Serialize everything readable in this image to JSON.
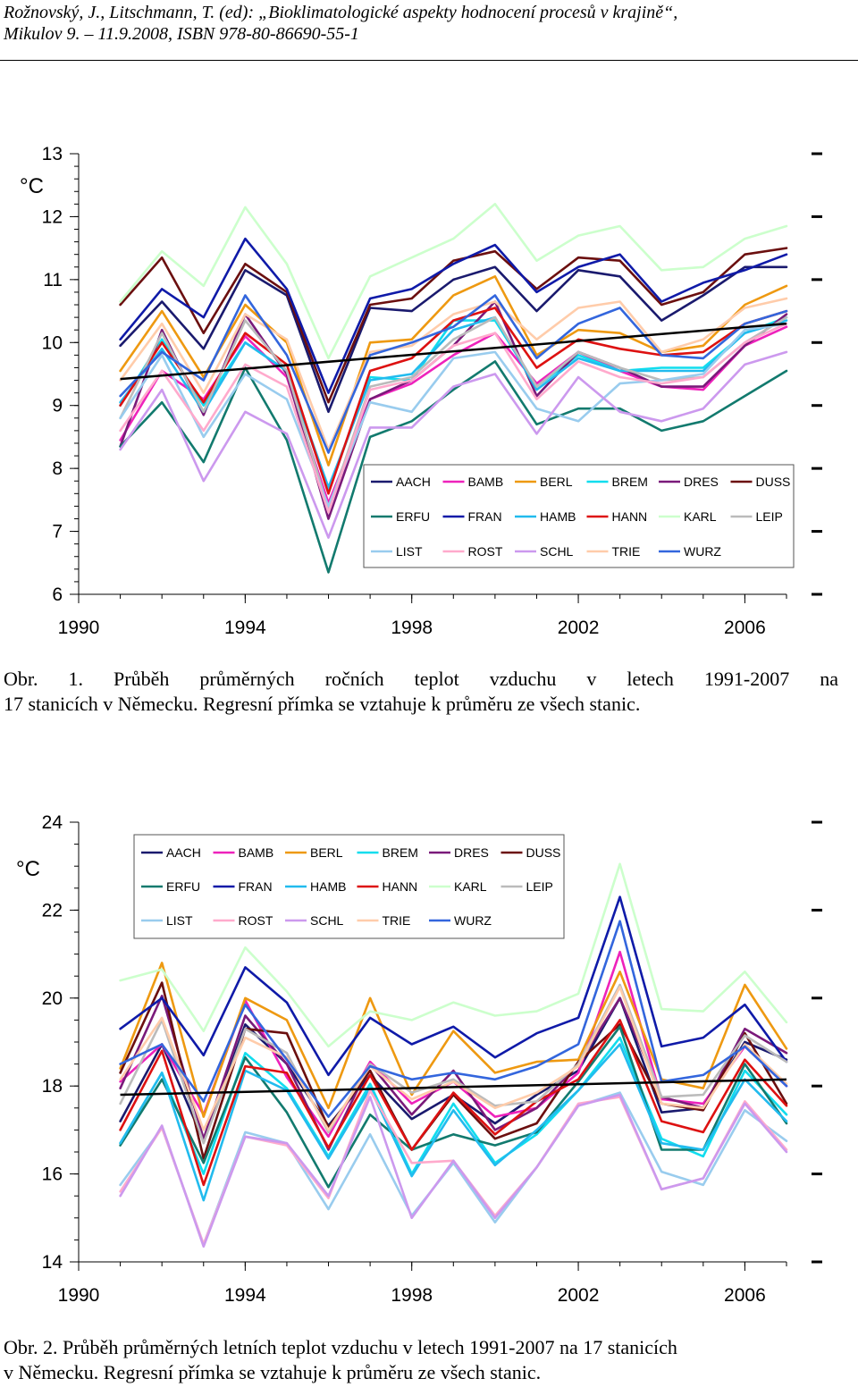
{
  "header": {
    "line1": "Rožnovský, J., Litschmann, T. (ed): „Bioklimatologické aspekty hodnocení procesů v krajině“,",
    "line2": "Mikulov 9. – 11.9.2008, ISBN 978-80-86690-55-1"
  },
  "figure1": {
    "caption_line1": "Obr. 1. Průběh průměrných ročních teplot vzduchu v letech 1991-2007 na",
    "caption_line2": "17 stanicích v Německu. Regresní přímka se vztahuje k průměru ze všech stanic."
  },
  "figure2": {
    "caption_line1": "Obr. 2. Průběh průměrných letních teplot vzduchu v letech 1991-2007 na 17 stanicích",
    "caption_line2": "v Německu. Regresní přímka se vztahuje k průměru ze všech stanic."
  },
  "chart_data": [
    {
      "type": "line",
      "unit_label": "°C",
      "x": [
        1991,
        1992,
        1993,
        1994,
        1995,
        1996,
        1997,
        1998,
        1999,
        2000,
        2001,
        2002,
        2003,
        2004,
        2005,
        2006,
        2007
      ],
      "x_ticks": [
        1990,
        1994,
        1998,
        2002,
        2006
      ],
      "xlim": [
        1990,
        2007
      ],
      "y_ticks": [
        6,
        7,
        8,
        9,
        10,
        11,
        12,
        13
      ],
      "ylim": [
        6,
        13
      ],
      "legend_position": "inside-bottom-right",
      "regression": {
        "color": "#000000",
        "values": [
          9.42,
          10.3
        ]
      },
      "series": [
        {
          "name": "AACH",
          "color": "#1a1a6e",
          "values": [
            9.95,
            10.65,
            9.9,
            11.15,
            10.75,
            8.9,
            10.55,
            10.5,
            11.0,
            11.2,
            10.5,
            11.15,
            11.05,
            10.35,
            10.75,
            11.2,
            11.2
          ]
        },
        {
          "name": "BAMB",
          "color": "#ee22bb",
          "values": [
            8.45,
            9.55,
            9.1,
            10.1,
            9.45,
            7.45,
            9.1,
            9.35,
            9.8,
            10.15,
            9.35,
            9.85,
            9.55,
            9.3,
            9.25,
            9.95,
            10.25
          ]
        },
        {
          "name": "BERL",
          "color": "#ee9911",
          "values": [
            9.55,
            10.5,
            9.45,
            10.6,
            10.0,
            8.05,
            10.0,
            10.05,
            10.75,
            11.05,
            9.8,
            10.2,
            10.15,
            9.85,
            9.95,
            10.6,
            10.9
          ]
        },
        {
          "name": "BREM",
          "color": "#11ddee",
          "values": [
            9.0,
            10.05,
            9.0,
            10.0,
            9.55,
            7.65,
            9.45,
            9.4,
            10.35,
            10.35,
            9.3,
            9.8,
            9.55,
            9.6,
            9.6,
            10.15,
            10.4
          ]
        },
        {
          "name": "DRES",
          "color": "#7a1a7a",
          "values": [
            8.35,
            10.2,
            8.85,
            10.45,
            9.5,
            7.2,
            9.1,
            9.4,
            9.95,
            10.65,
            9.15,
            9.85,
            9.6,
            9.3,
            9.3,
            9.95,
            10.45
          ]
        },
        {
          "name": "DUSS",
          "color": "#6b0f0f",
          "values": [
            10.6,
            11.35,
            10.15,
            11.25,
            10.8,
            9.05,
            10.6,
            10.7,
            11.3,
            11.45,
            10.85,
            11.35,
            11.3,
            10.6,
            10.8,
            11.4,
            11.5
          ]
        },
        {
          "name": "ERFU",
          "color": "#127a6e",
          "values": [
            8.35,
            9.05,
            8.1,
            9.6,
            8.45,
            6.35,
            8.5,
            8.75,
            9.25,
            9.7,
            8.7,
            8.95,
            8.95,
            8.6,
            8.75,
            9.15,
            9.55
          ]
        },
        {
          "name": "FRAN",
          "color": "#0f1aa8",
          "values": [
            10.05,
            10.85,
            10.4,
            11.65,
            10.85,
            9.2,
            10.7,
            10.85,
            11.25,
            11.55,
            10.8,
            11.2,
            11.4,
            10.65,
            10.95,
            11.15,
            11.4
          ]
        },
        {
          "name": "HAMB",
          "color": "#22bbee",
          "values": [
            9.05,
            9.9,
            8.9,
            10.0,
            9.55,
            7.7,
            9.4,
            9.5,
            10.2,
            10.4,
            9.25,
            9.75,
            9.55,
            9.55,
            9.55,
            10.15,
            10.35
          ]
        },
        {
          "name": "HANN",
          "color": "#dd1111",
          "values": [
            9.0,
            10.0,
            9.05,
            10.15,
            9.65,
            7.6,
            9.55,
            9.75,
            10.35,
            10.55,
            9.6,
            10.05,
            9.9,
            9.8,
            9.85,
            10.3,
            10.5
          ]
        },
        {
          "name": "KARL",
          "color": "#ccffcc",
          "values": [
            10.65,
            11.45,
            10.9,
            12.15,
            11.25,
            9.75,
            11.05,
            11.35,
            11.65,
            12.2,
            11.3,
            11.7,
            11.85,
            11.15,
            11.2,
            11.65,
            11.85
          ]
        },
        {
          "name": "LEIP",
          "color": "#bbbbbb",
          "values": [
            8.8,
            10.15,
            8.9,
            10.35,
            9.55,
            7.35,
            9.3,
            9.45,
            10.05,
            10.4,
            9.3,
            9.85,
            9.6,
            9.4,
            9.45,
            10.0,
            10.4
          ]
        },
        {
          "name": "LIST",
          "color": "#99ccee",
          "values": [
            8.8,
            9.8,
            8.5,
            9.5,
            9.1,
            7.4,
            9.05,
            8.9,
            9.75,
            9.85,
            8.95,
            8.75,
            9.35,
            9.4,
            9.5,
            10.2,
            10.3
          ]
        },
        {
          "name": "ROST",
          "color": "#ffaacc",
          "values": [
            8.6,
            9.55,
            8.6,
            9.65,
            9.3,
            7.3,
            9.25,
            9.4,
            9.95,
            10.15,
            9.1,
            9.7,
            9.45,
            9.35,
            9.45,
            10.0,
            10.3
          ]
        },
        {
          "name": "SCHL",
          "color": "#cc99ee",
          "values": [
            8.3,
            9.25,
            7.8,
            8.9,
            8.55,
            6.9,
            8.65,
            8.65,
            9.3,
            9.5,
            8.55,
            9.45,
            8.9,
            8.75,
            8.95,
            9.65,
            9.85
          ]
        },
        {
          "name": "TRIE",
          "color": "#ffccaa",
          "values": [
            9.4,
            10.3,
            9.2,
            10.45,
            10.05,
            8.3,
            9.85,
            9.95,
            10.45,
            10.65,
            10.05,
            10.55,
            10.65,
            9.85,
            10.05,
            10.55,
            10.7
          ]
        },
        {
          "name": "WURZ",
          "color": "#3366dd",
          "values": [
            9.15,
            9.85,
            9.4,
            10.75,
            9.8,
            8.25,
            9.8,
            10.0,
            10.25,
            10.75,
            9.75,
            10.3,
            10.55,
            9.8,
            9.75,
            10.3,
            10.5
          ]
        }
      ]
    },
    {
      "type": "line",
      "unit_label": "°C",
      "x": [
        1991,
        1992,
        1993,
        1994,
        1995,
        1996,
        1997,
        1998,
        1999,
        2000,
        2001,
        2002,
        2003,
        2004,
        2005,
        2006,
        2007
      ],
      "x_ticks": [
        1990,
        1994,
        1998,
        2002,
        2006
      ],
      "xlim": [
        1990,
        2007
      ],
      "y_ticks": [
        14,
        16,
        18,
        20,
        22,
        24
      ],
      "ylim": [
        14,
        24
      ],
      "legend_position": "inside-top-left",
      "regression": {
        "color": "#000000",
        "values": [
          17.8,
          18.15
        ]
      },
      "series": [
        {
          "name": "AACH",
          "color": "#1a1a6e",
          "values": [
            17.2,
            18.95,
            16.75,
            19.4,
            18.5,
            17.1,
            18.25,
            17.25,
            17.8,
            17.15,
            17.8,
            18.35,
            20.0,
            17.4,
            17.5,
            19.0,
            18.6
          ]
        },
        {
          "name": "BAMB",
          "color": "#ee22bb",
          "values": [
            18.1,
            18.95,
            17.35,
            19.95,
            18.2,
            16.85,
            18.55,
            17.6,
            18.1,
            17.3,
            17.5,
            18.3,
            21.05,
            17.7,
            17.6,
            18.9,
            18.0
          ]
        },
        {
          "name": "BERL",
          "color": "#ee9911",
          "values": [
            18.4,
            20.8,
            17.3,
            20.0,
            19.5,
            17.5,
            20.0,
            17.8,
            19.25,
            18.3,
            18.55,
            18.6,
            20.6,
            18.15,
            17.95,
            20.3,
            18.85
          ]
        },
        {
          "name": "BREM",
          "color": "#11ddee",
          "values": [
            16.7,
            18.3,
            16.0,
            18.75,
            17.95,
            16.4,
            18.05,
            16.0,
            17.6,
            16.25,
            16.9,
            17.9,
            19.1,
            16.8,
            16.4,
            18.35,
            17.35
          ]
        },
        {
          "name": "DRES",
          "color": "#7a1a7a",
          "values": [
            17.95,
            20.05,
            16.8,
            19.6,
            18.5,
            16.55,
            18.5,
            17.35,
            18.35,
            17.0,
            17.5,
            18.5,
            20.0,
            17.75,
            17.5,
            19.3,
            18.75
          ]
        },
        {
          "name": "DUSS",
          "color": "#6b0f0f",
          "values": [
            18.3,
            20.35,
            16.35,
            19.3,
            19.2,
            17.05,
            18.35,
            16.55,
            17.8,
            16.8,
            17.15,
            18.55,
            19.4,
            17.6,
            17.45,
            19.2,
            17.6
          ]
        },
        {
          "name": "ERFU",
          "color": "#127a6e",
          "values": [
            16.65,
            18.15,
            16.25,
            18.65,
            17.4,
            15.7,
            17.35,
            16.55,
            16.9,
            16.65,
            16.95,
            18.1,
            19.35,
            16.55,
            16.55,
            18.5,
            17.15
          ]
        },
        {
          "name": "FRAN",
          "color": "#0f1aa8",
          "values": [
            19.3,
            20.0,
            18.7,
            20.7,
            19.9,
            18.25,
            19.55,
            18.95,
            19.35,
            18.65,
            19.2,
            19.55,
            22.3,
            18.9,
            19.1,
            19.85,
            18.55
          ]
        },
        {
          "name": "HAMB",
          "color": "#22bbee",
          "values": [
            16.7,
            18.3,
            15.4,
            18.35,
            17.9,
            16.35,
            17.95,
            15.95,
            17.45,
            16.2,
            17.0,
            17.9,
            18.95,
            16.7,
            16.55,
            18.15,
            17.2
          ]
        },
        {
          "name": "HANN",
          "color": "#dd1111",
          "values": [
            17.0,
            18.8,
            15.75,
            18.45,
            18.3,
            16.6,
            18.25,
            16.55,
            17.85,
            16.9,
            17.65,
            18.15,
            19.5,
            17.2,
            16.95,
            18.6,
            17.55
          ]
        },
        {
          "name": "KARL",
          "color": "#ccffcc",
          "values": [
            20.4,
            20.65,
            19.25,
            21.15,
            20.15,
            18.9,
            19.7,
            19.5,
            19.9,
            19.6,
            19.7,
            20.1,
            23.05,
            19.75,
            19.7,
            20.6,
            19.45
          ]
        },
        {
          "name": "LEIP",
          "color": "#bbbbbb",
          "values": [
            17.6,
            19.5,
            16.7,
            19.3,
            18.75,
            16.95,
            18.5,
            17.85,
            18.15,
            17.55,
            17.65,
            18.5,
            20.3,
            17.75,
            17.8,
            19.15,
            18.55
          ]
        },
        {
          "name": "LIST",
          "color": "#99ccee",
          "values": [
            15.75,
            17.05,
            14.4,
            16.95,
            16.7,
            15.2,
            16.9,
            15.05,
            16.25,
            14.9,
            16.15,
            17.55,
            17.85,
            16.05,
            15.75,
            17.45,
            16.75
          ]
        },
        {
          "name": "ROST",
          "color": "#ffaacc",
          "values": [
            15.6,
            17.05,
            14.4,
            16.85,
            16.65,
            15.45,
            17.9,
            16.25,
            16.3,
            15.05,
            16.15,
            17.6,
            17.75,
            15.65,
            15.9,
            17.65,
            16.55
          ]
        },
        {
          "name": "SCHL",
          "color": "#cc99ee",
          "values": [
            15.5,
            17.1,
            14.35,
            16.85,
            16.7,
            15.5,
            17.75,
            15.0,
            16.3,
            15.0,
            16.15,
            17.55,
            17.8,
            15.65,
            15.9,
            17.6,
            16.5
          ]
        },
        {
          "name": "TRIE",
          "color": "#ffccaa",
          "values": [
            18.15,
            19.55,
            17.0,
            19.1,
            18.65,
            17.0,
            18.45,
            17.7,
            18.1,
            17.5,
            17.85,
            18.45,
            20.25,
            17.6,
            17.5,
            18.95,
            18.05
          ]
        },
        {
          "name": "WURZ",
          "color": "#3366dd",
          "values": [
            18.5,
            18.95,
            17.65,
            19.85,
            18.6,
            17.3,
            18.45,
            18.15,
            18.3,
            18.15,
            18.45,
            18.95,
            21.75,
            18.1,
            18.25,
            18.9,
            18.0
          ]
        }
      ]
    }
  ]
}
